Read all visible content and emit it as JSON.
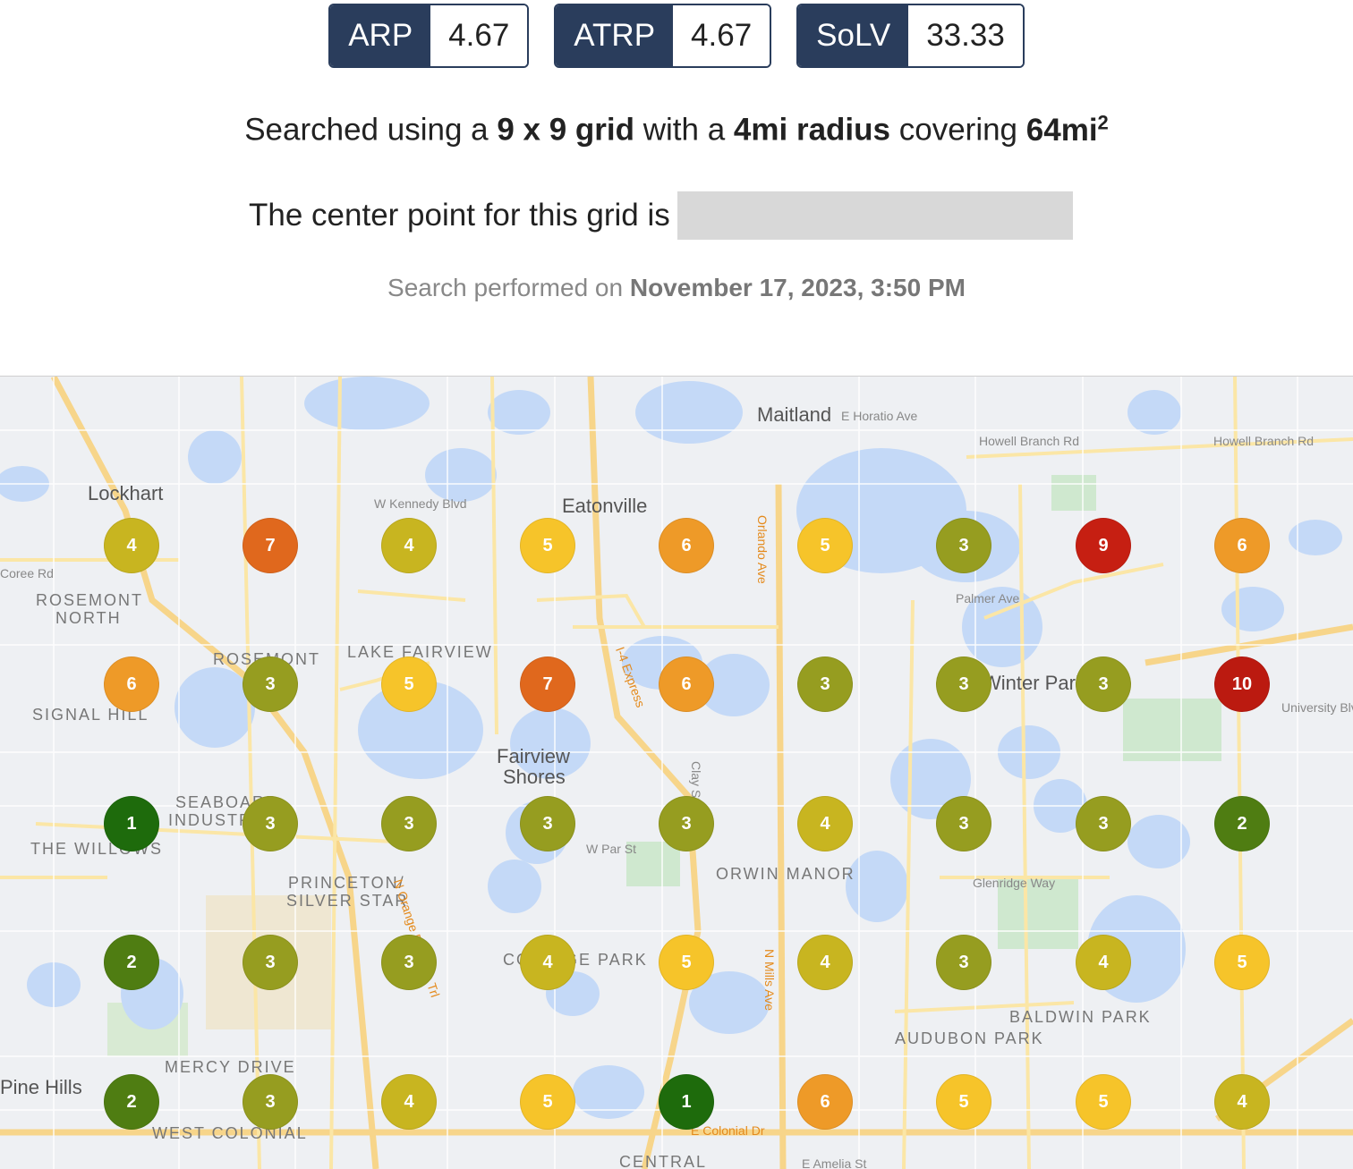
{
  "metrics": [
    {
      "label": "ARP",
      "value": "4.67"
    },
    {
      "label": "ATRP",
      "value": "4.67"
    },
    {
      "label": "SoLV",
      "value": "33.33"
    }
  ],
  "search": {
    "prefix": "Searched using a",
    "grid": "9 x 9 grid",
    "with": "with a",
    "radius": "4mi radius",
    "covering": "covering",
    "area": "64mi",
    "area_exp": "2"
  },
  "center_text": "The center point for this grid is",
  "date": {
    "prefix": "Search performed on",
    "value": "November 17, 2023, 3:50 PM"
  },
  "map_labels": [
    {
      "text": "Lockhart",
      "cls": "big"
    },
    {
      "text": "Maitland",
      "cls": "big"
    },
    {
      "text": "Eatonville",
      "cls": "big"
    },
    {
      "text": "Fairview",
      "cls": "big"
    },
    {
      "text": "Shores",
      "cls": "big"
    },
    {
      "text": "ROSEMONT",
      "cls": "hood"
    },
    {
      "text": "NORTH",
      "cls": "hood"
    },
    {
      "text": "ROSEMONT",
      "cls": "hood"
    },
    {
      "text": "LAKE FAIRVIEW",
      "cls": "hood"
    },
    {
      "text": "SIGNAL HILL",
      "cls": "hood"
    },
    {
      "text": "SEABOARD",
      "cls": "hood"
    },
    {
      "text": "INDUSTRIAL",
      "cls": "hood"
    },
    {
      "text": "THE WILLOWS",
      "cls": "hood"
    },
    {
      "text": "PRINCETON/",
      "cls": "hood"
    },
    {
      "text": "SILVER STAR",
      "cls": "hood"
    },
    {
      "text": "ORWIN MANOR",
      "cls": "hood"
    },
    {
      "text": "COLLEGE PARK",
      "cls": "hood"
    },
    {
      "text": "BALDWIN PARK",
      "cls": "hood"
    },
    {
      "text": "AUDUBON PARK",
      "cls": "hood"
    },
    {
      "text": "MERCY DRIVE",
      "cls": "hood"
    },
    {
      "text": "WEST COLONIAL",
      "cls": "hood"
    },
    {
      "text": "Pine Hills",
      "cls": "big"
    },
    {
      "text": "Winter Park",
      "cls": "big"
    },
    {
      "text": "CENTRAL",
      "cls": "hood"
    },
    {
      "text": "Howell Branch Rd",
      "cls": "road"
    },
    {
      "text": "Howell Branch Rd",
      "cls": "road"
    },
    {
      "text": "W Kennedy Blvd",
      "cls": "road"
    },
    {
      "text": "Palmer Ave",
      "cls": "road"
    },
    {
      "text": "Glenridge Way",
      "cls": "road"
    },
    {
      "text": "W Par St",
      "cls": "road"
    },
    {
      "text": "E Colonial Dr",
      "cls": "hwy"
    },
    {
      "text": "Orlando Ave",
      "cls": "hwy"
    },
    {
      "text": "N Mills Ave",
      "cls": "hwy"
    },
    {
      "text": "I-4 Express",
      "cls": "hwy"
    },
    {
      "text": "N Orange Blossom Trl",
      "cls": "hwy"
    },
    {
      "text": "E Horatio Ave",
      "cls": "road"
    },
    {
      "text": "University Blvd",
      "cls": "road"
    },
    {
      "text": "E Amelia St",
      "cls": "road"
    },
    {
      "text": "Clay St",
      "cls": "road"
    },
    {
      "text": "Coree Rd",
      "cls": "road"
    }
  ],
  "grid_ranks": [
    [
      4,
      7,
      4,
      5,
      6,
      5,
      3,
      9,
      6
    ],
    [
      6,
      3,
      5,
      7,
      6,
      3,
      3,
      3,
      10
    ],
    [
      1,
      3,
      3,
      3,
      3,
      4,
      3,
      3,
      2
    ],
    [
      2,
      3,
      3,
      4,
      5,
      4,
      3,
      4,
      5
    ],
    [
      2,
      3,
      4,
      5,
      1,
      6,
      5,
      5,
      4
    ]
  ],
  "rank_colors": {
    "1": "#1e6b0c",
    "2": "#4f7d12",
    "3": "#969d20",
    "4": "#c8b520",
    "5": "#f6c42a",
    "6": "#ee9a28",
    "7": "#e0681d",
    "9": "#c61f12",
    "10": "#bb1a10"
  }
}
